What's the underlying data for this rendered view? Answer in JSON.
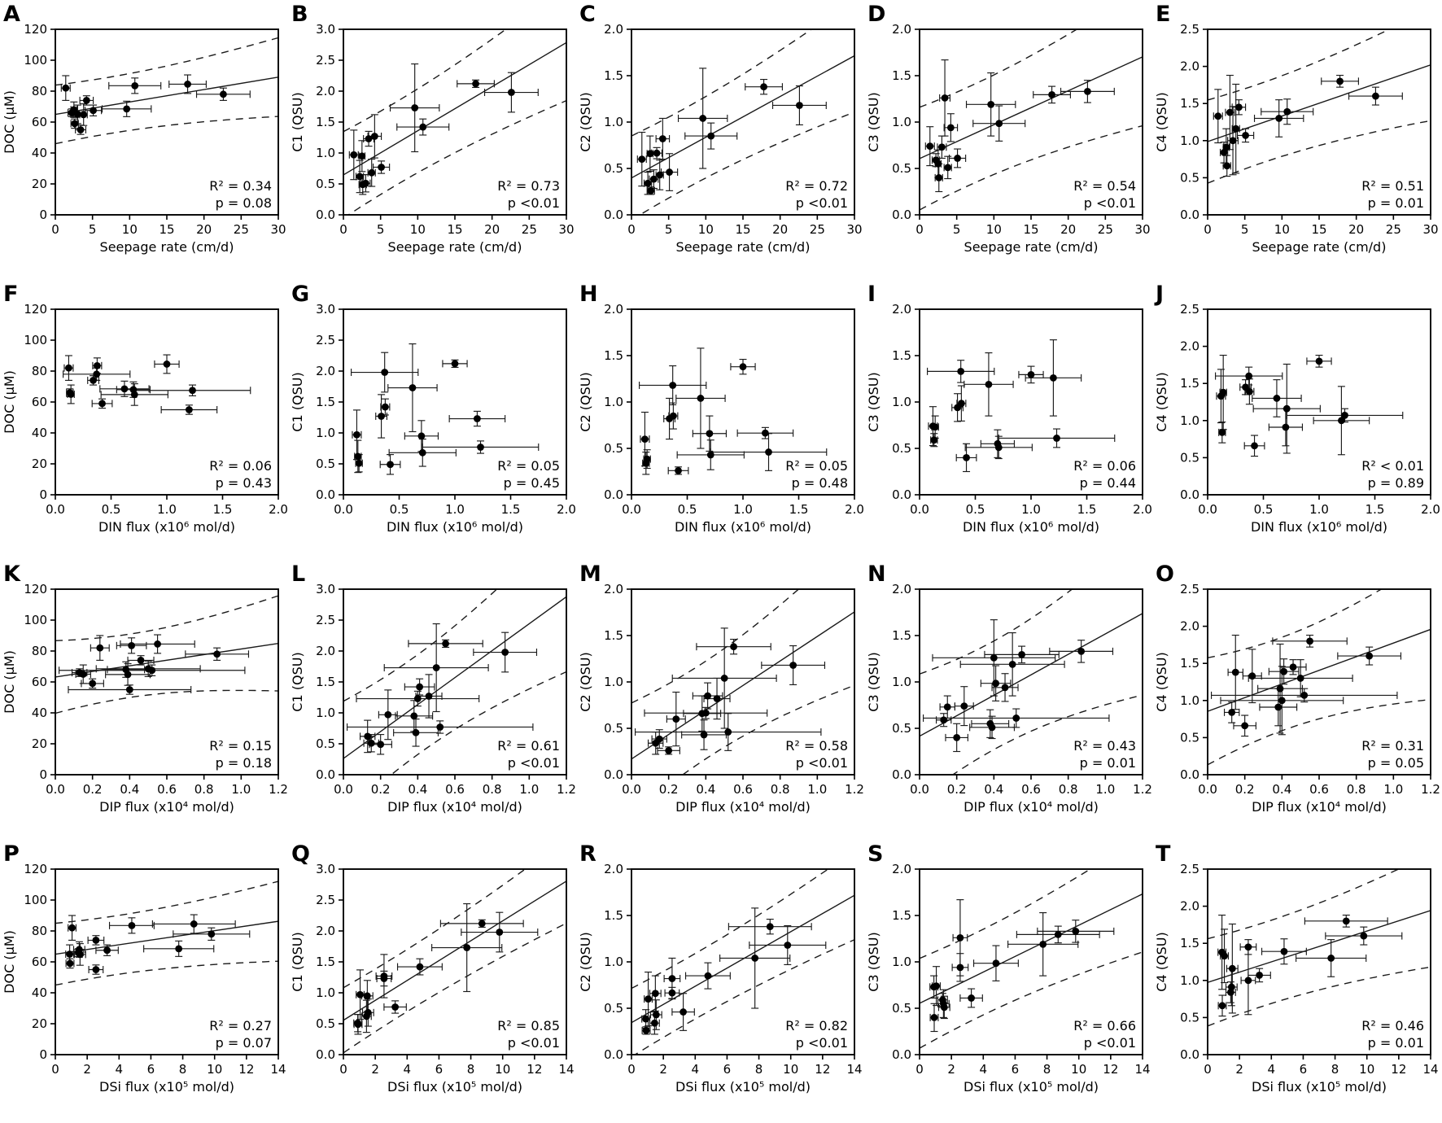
{
  "figure": {
    "background": "#ffffff",
    "marker_color": "#000000",
    "line_color": "#1a1a1a",
    "panel_letters": [
      "A",
      "B",
      "C",
      "D",
      "E",
      "F",
      "G",
      "H",
      "I",
      "J",
      "K",
      "L",
      "M",
      "N",
      "O",
      "P",
      "Q",
      "R",
      "S",
      "T"
    ]
  },
  "chart_data": {
    "type": "scatter",
    "grid": {
      "rows": 4,
      "cols": 5
    },
    "legend": "none",
    "grid_lines": false,
    "x_axes": {
      "seepage": {
        "label": "Seepage rate (cm/d)",
        "min": 0,
        "max": 30,
        "ticks": [
          0,
          5,
          10,
          15,
          20,
          25,
          30
        ],
        "tick_labels": [
          "0",
          "5",
          "10",
          "15",
          "20",
          "25",
          "30"
        ]
      },
      "din": {
        "label": "DIN flux (x10⁶ mol/d)",
        "min": 0,
        "max": 2.0,
        "ticks": [
          0,
          0.5,
          1.0,
          1.5,
          2.0
        ],
        "tick_labels": [
          "0.0",
          "0.5",
          "1.0",
          "1.5",
          "2.0"
        ]
      },
      "dip": {
        "label": "DIP flux (x10⁴ mol/d)",
        "min": 0,
        "max": 1.2,
        "ticks": [
          0,
          0.2,
          0.4,
          0.6,
          0.8,
          1.0,
          1.2
        ],
        "tick_labels": [
          "0.0",
          "0.2",
          "0.4",
          "0.6",
          "0.8",
          "1.0",
          "1.2"
        ]
      },
      "dsi": {
        "label": "DSi flux (x10⁵ mol/d)",
        "min": 0,
        "max": 14,
        "ticks": [
          0,
          2,
          4,
          6,
          8,
          10,
          12,
          14
        ],
        "tick_labels": [
          "0",
          "2",
          "4",
          "6",
          "8",
          "10",
          "12",
          "14"
        ]
      }
    },
    "y_axes": {
      "doc": {
        "label": "DOC (µM)",
        "min": 0,
        "max": 120,
        "ticks": [
          0,
          20,
          40,
          60,
          80,
          100,
          120
        ],
        "tick_labels": [
          "0",
          "20",
          "40",
          "60",
          "80",
          "100",
          "120"
        ]
      },
      "c1": {
        "label": "C1 (QSU)",
        "min": 0,
        "max": 3.0,
        "ticks": [
          0,
          0.5,
          1.0,
          1.5,
          2.0,
          2.5,
          3.0
        ],
        "tick_labels": [
          "0.0",
          "0.5",
          "1.0",
          "1.5",
          "2.0",
          "2.5",
          "3.0"
        ]
      },
      "c2": {
        "label": "C2 (QSU)",
        "min": 0,
        "max": 2.0,
        "ticks": [
          0,
          0.5,
          1.0,
          1.5,
          2.0
        ],
        "tick_labels": [
          "0.0",
          "0.5",
          "1.0",
          "1.5",
          "2.0"
        ]
      },
      "c3": {
        "label": "C3 (QSU)",
        "min": 0,
        "max": 2.0,
        "ticks": [
          0,
          0.5,
          1.0,
          1.5,
          2.0
        ],
        "tick_labels": [
          "0.0",
          "0.5",
          "1.0",
          "1.5",
          "2.0"
        ]
      },
      "c4": {
        "label": "C4 (QSU)",
        "min": 0,
        "max": 2.5,
        "ticks": [
          0,
          0.5,
          1.0,
          1.5,
          2.0,
          2.5
        ],
        "tick_labels": [
          "0.0",
          "0.5",
          "1.0",
          "1.5",
          "2.0",
          "2.5"
        ]
      }
    },
    "samples": [
      {
        "seepage": [
          1.4,
          0.6
        ],
        "din": [
          0.12,
          0.04
        ],
        "dip": [
          0.24,
          0.05
        ],
        "dsi": [
          1.05,
          0.25
        ],
        "doc": [
          82,
          8
        ],
        "c1": [
          0.97,
          0.4
        ],
        "c2": [
          0.6,
          0.29
        ],
        "c3": [
          0.74,
          0.21
        ],
        "c4": [
          1.33,
          0.36
        ]
      },
      {
        "seepage": [
          2.2,
          0.5
        ],
        "din": [
          0.13,
          0.03
        ],
        "dip": [
          0.13,
          0.04
        ],
        "dsi": [
          1.45,
          0.3
        ],
        "doc": [
          66,
          2.5
        ],
        "c1": [
          0.62,
          0.26
        ],
        "c2": [
          0.34,
          0.12
        ],
        "c3": [
          0.59,
          0.07
        ],
        "c4": [
          0.84,
          0.14
        ]
      },
      {
        "seepage": [
          3.0,
          0.6
        ],
        "din": [
          0.14,
          0.03
        ],
        "dip": [
          0.15,
          0.04
        ],
        "dsi": [
          0.9,
          0.25
        ],
        "doc": [
          65,
          6
        ],
        "c1": [
          0.51,
          0.14
        ],
        "c2": [
          0.385,
          0.1
        ],
        "c3": [
          0.73,
          0.12
        ],
        "c4": [
          1.38,
          0.5
        ]
      },
      {
        "seepage": [
          2.5,
          0.4
        ],
        "din": [
          0.7,
          0.15
        ],
        "dip": [
          0.38,
          0.1
        ],
        "dsi": [
          1.5,
          0.35
        ],
        "doc": [
          68,
          5
        ],
        "c1": [
          0.95,
          0.25
        ],
        "c2": [
          0.66,
          0.19
        ],
        "c3": [
          0.55,
          0.15
        ],
        "c4": [
          0.91,
          0.25
        ]
      },
      {
        "seepage": [
          2.6,
          0.5
        ],
        "din": [
          0.42,
          0.09
        ],
        "dip": [
          0.2,
          0.06
        ],
        "dsi": [
          0.92,
          0.25
        ],
        "doc": [
          59,
          3
        ],
        "c1": [
          0.49,
          0.16
        ],
        "c2": [
          0.26,
          0.04
        ],
        "c3": [
          0.4,
          0.15
        ],
        "c4": [
          0.66,
          0.14
        ]
      },
      {
        "seepage": [
          3.4,
          0.7
        ],
        "din": [
          1.2,
          0.25
        ],
        "dip": [
          0.4,
          0.33
        ],
        "dsi": [
          2.55,
          0.45
        ],
        "doc": [
          55,
          3
        ],
        "c1": [
          1.23,
          0.12
        ],
        "c2": [
          0.665,
          0.06
        ],
        "c3": [
          1.26,
          0.41
        ],
        "c4": [
          1.0,
          0.46
        ]
      },
      {
        "seepage": [
          3.8,
          0.5
        ],
        "din": [
          0.71,
          0.3
        ],
        "dip": [
          0.39,
          0.12
        ],
        "dsi": [
          1.55,
          0.35
        ],
        "doc": [
          64.8,
          7
        ],
        "c1": [
          0.68,
          0.22
        ],
        "c2": [
          0.43,
          0.16
        ],
        "c3": [
          0.51,
          0.12
        ],
        "c4": [
          1.16,
          0.6
        ]
      },
      {
        "seepage": [
          4.2,
          0.9
        ],
        "din": [
          0.34,
          0.05
        ],
        "dip": [
          0.46,
          0.07
        ],
        "dsi": [
          2.55,
          0.5
        ],
        "doc": [
          74,
          3
        ],
        "c1": [
          1.27,
          0.35
        ],
        "c2": [
          0.82,
          0.22
        ],
        "c3": [
          0.94,
          0.15
        ],
        "c4": [
          1.45,
          0.1
        ]
      },
      {
        "seepage": [
          5.1,
          1.1
        ],
        "din": [
          1.23,
          0.52
        ],
        "dip": [
          0.52,
          0.5
        ],
        "dsi": [
          3.25,
          0.7
        ],
        "doc": [
          67.5,
          3.5
        ],
        "c1": [
          0.77,
          0.1
        ],
        "c2": [
          0.46,
          0.2
        ],
        "c3": [
          0.61,
          0.1
        ],
        "c4": [
          1.07,
          0.09
        ]
      },
      {
        "seepage": [
          9.6,
          3.3
        ],
        "din": [
          0.62,
          0.22
        ],
        "dip": [
          0.5,
          0.28
        ],
        "dsi": [
          7.75,
          2.2
        ],
        "doc": [
          68.5,
          5
        ],
        "c1": [
          1.73,
          0.71
        ],
        "c2": [
          1.04,
          0.54
        ],
        "c3": [
          1.19,
          0.34
        ],
        "c4": [
          1.3,
          0.25
        ]
      },
      {
        "seepage": [
          10.7,
          3.5
        ],
        "din": [
          0.375,
          0.04
        ],
        "dip": [
          0.41,
          0.08
        ],
        "dsi": [
          4.8,
          1.4
        ],
        "doc": [
          83.5,
          5
        ],
        "c1": [
          1.42,
          0.13
        ],
        "c2": [
          0.85,
          0.14
        ],
        "c3": [
          0.985,
          0.19
        ],
        "c4": [
          1.39,
          0.17
        ]
      },
      {
        "seepage": [
          17.8,
          2.5
        ],
        "din": [
          1.0,
          0.11
        ],
        "dip": [
          0.55,
          0.2
        ],
        "dsi": [
          8.7,
          2.6
        ],
        "doc": [
          84.5,
          6
        ],
        "c1": [
          2.12,
          0.06
        ],
        "c2": [
          1.38,
          0.08
        ],
        "c3": [
          1.295,
          0.09
        ],
        "c4": [
          1.8,
          0.08
        ]
      },
      {
        "seepage": [
          22.6,
          3.6
        ],
        "din": [
          0.37,
          0.3
        ],
        "dip": [
          0.87,
          0.17
        ],
        "dsi": [
          9.8,
          2.4
        ],
        "doc": [
          78,
          4
        ],
        "c1": [
          1.98,
          0.32
        ],
        "c2": [
          1.18,
          0.21
        ],
        "c3": [
          1.33,
          0.12
        ],
        "c4": [
          1.6,
          0.12
        ]
      }
    ],
    "panels": [
      {
        "letter": "A",
        "x": "seepage",
        "y": "doc",
        "r2": "R² = 0.34",
        "p": "p = 0.08",
        "fit": true
      },
      {
        "letter": "B",
        "x": "seepage",
        "y": "c1",
        "r2": "R² = 0.73",
        "p": "p <0.01",
        "fit": true
      },
      {
        "letter": "C",
        "x": "seepage",
        "y": "c2",
        "r2": "R² = 0.72",
        "p": "p <0.01",
        "fit": true
      },
      {
        "letter": "D",
        "x": "seepage",
        "y": "c3",
        "r2": "R² = 0.54",
        "p": "p <0.01",
        "fit": true
      },
      {
        "letter": "E",
        "x": "seepage",
        "y": "c4",
        "r2": "R² = 0.51",
        "p": "p = 0.01",
        "fit": true
      },
      {
        "letter": "F",
        "x": "din",
        "y": "doc",
        "r2": "R² = 0.06",
        "p": "p = 0.43",
        "fit": false
      },
      {
        "letter": "G",
        "x": "din",
        "y": "c1",
        "r2": "R² = 0.05",
        "p": "p = 0.45",
        "fit": false
      },
      {
        "letter": "H",
        "x": "din",
        "y": "c2",
        "r2": "R² = 0.05",
        "p": "p = 0.48",
        "fit": false
      },
      {
        "letter": "I",
        "x": "din",
        "y": "c3",
        "r2": "R² = 0.06",
        "p": "p = 0.44",
        "fit": false
      },
      {
        "letter": "J",
        "x": "din",
        "y": "c4",
        "r2": "R² < 0.01",
        "p": "p = 0.89",
        "fit": false
      },
      {
        "letter": "K",
        "x": "dip",
        "y": "doc",
        "r2": "R² = 0.15",
        "p": "p = 0.18",
        "fit": true
      },
      {
        "letter": "L",
        "x": "dip",
        "y": "c1",
        "r2": "R² = 0.61",
        "p": "p <0.01",
        "fit": true
      },
      {
        "letter": "M",
        "x": "dip",
        "y": "c2",
        "r2": "R² = 0.58",
        "p": "p <0.01",
        "fit": true
      },
      {
        "letter": "N",
        "x": "dip",
        "y": "c3",
        "r2": "R² = 0.43",
        "p": "p = 0.01",
        "fit": true
      },
      {
        "letter": "O",
        "x": "dip",
        "y": "c4",
        "r2": "R² = 0.31",
        "p": "p = 0.05",
        "fit": true
      },
      {
        "letter": "P",
        "x": "dsi",
        "y": "doc",
        "r2": "R² = 0.27",
        "p": "p = 0.07",
        "fit": true
      },
      {
        "letter": "Q",
        "x": "dsi",
        "y": "c1",
        "r2": "R² = 0.85",
        "p": "p <0.01",
        "fit": true
      },
      {
        "letter": "R",
        "x": "dsi",
        "y": "c2",
        "r2": "R² = 0.82",
        "p": "p <0.01",
        "fit": true
      },
      {
        "letter": "S",
        "x": "dsi",
        "y": "c3",
        "r2": "R² = 0.66",
        "p": "p <0.01",
        "fit": true
      },
      {
        "letter": "T",
        "x": "dsi",
        "y": "c4",
        "r2": "R² = 0.46",
        "p": "p = 0.01",
        "fit": true
      }
    ]
  }
}
